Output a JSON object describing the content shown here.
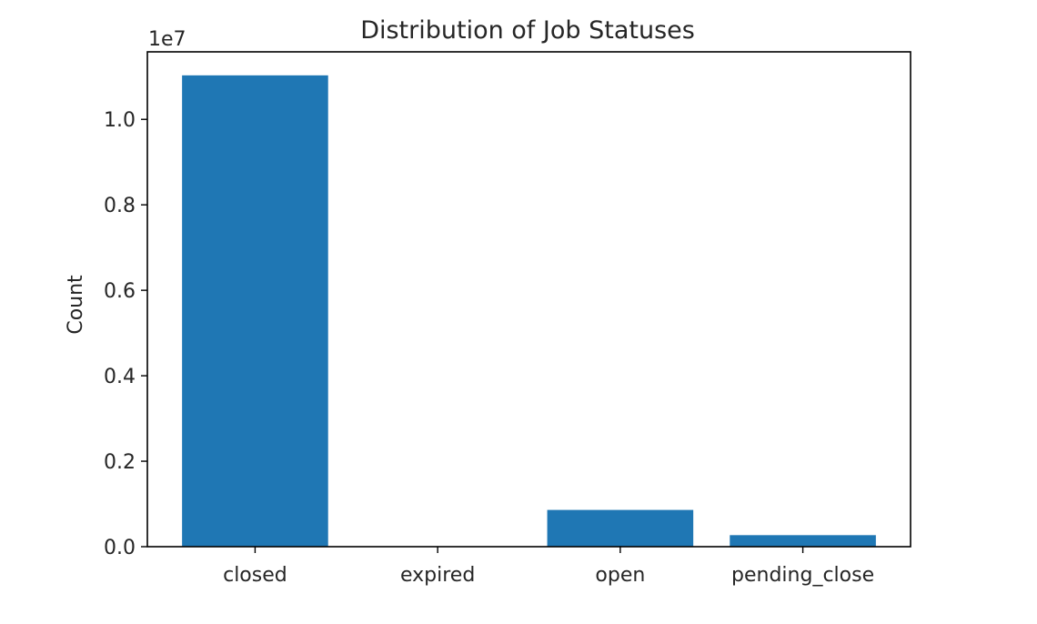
{
  "chart_data": {
    "type": "bar",
    "title": "Distribution of Job Statuses",
    "xlabel": "",
    "ylabel": "Count",
    "offset_label": "1e7",
    "categories": [
      "closed",
      "expired",
      "open",
      "pending_close"
    ],
    "values": [
      11030000,
      2000,
      860000,
      270000
    ],
    "ylim": [
      0,
      11580000
    ],
    "yticks": [
      0,
      2000000,
      4000000,
      6000000,
      8000000,
      10000000
    ],
    "ytick_labels": [
      "0.0",
      "0.2",
      "0.4",
      "0.6",
      "0.8",
      "1.0"
    ],
    "bar_color": "#1f77b4",
    "grid": false
  }
}
